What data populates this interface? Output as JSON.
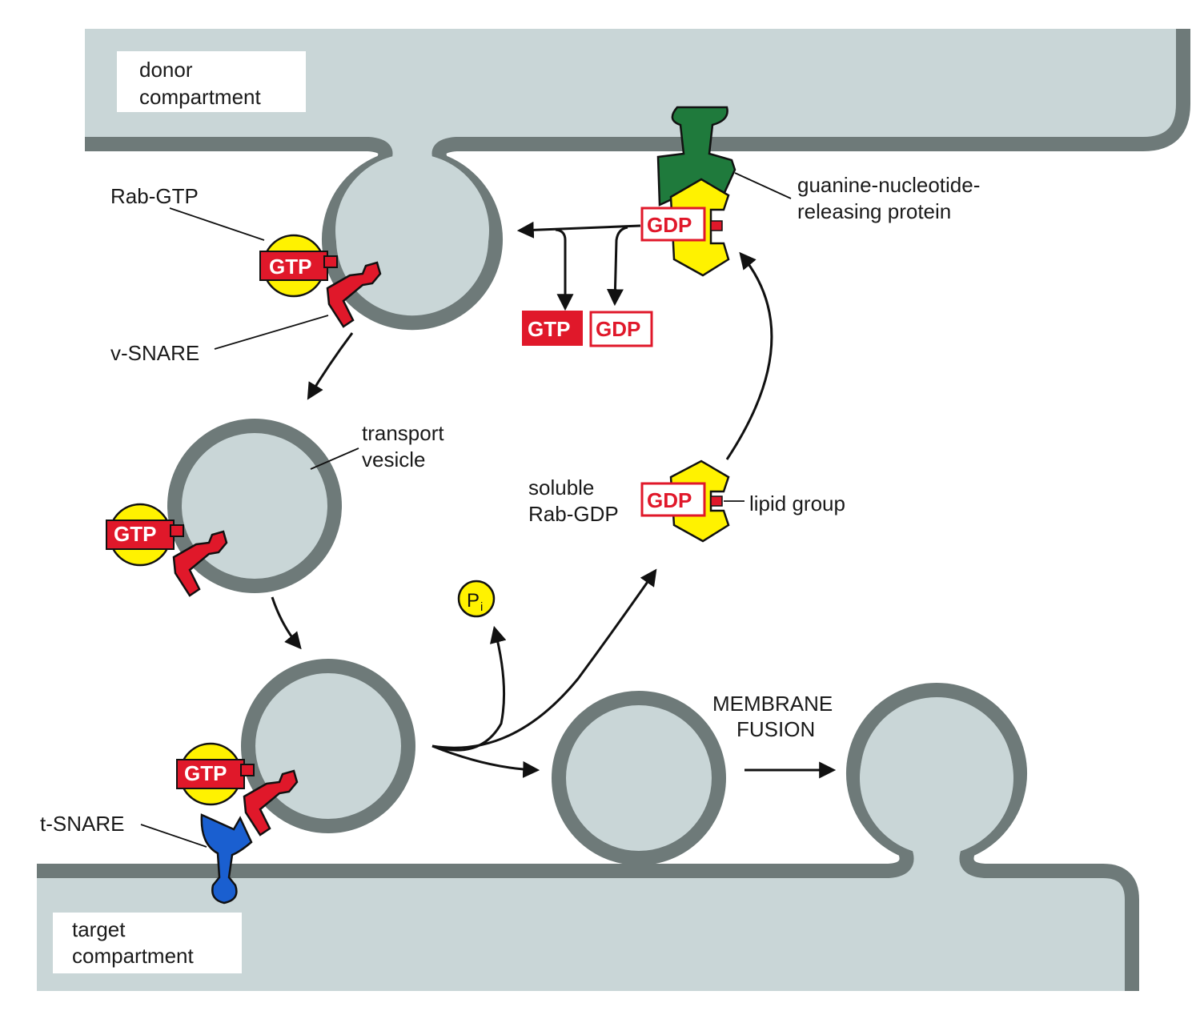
{
  "labels": {
    "donor_line1": "donor",
    "donor_line2": "compartment",
    "target_line1": "target",
    "target_line2": "compartment",
    "rab_gtp": "Rab-GTP",
    "v_snare": "v-SNARE",
    "t_snare": "t-SNARE",
    "transport_line1": "transport",
    "transport_line2": "vesicle",
    "gnrp_line1": "guanine-nucleotide-",
    "gnrp_line2": "releasing protein",
    "soluble_line1": "soluble",
    "soluble_line2": "Rab-GDP",
    "lipid_group": "lipid group",
    "fusion_line1": "MEMBRANE",
    "fusion_line2": "FUSION",
    "pi_main": "P",
    "pi_sub": "i"
  },
  "boxes": {
    "gtp": "GTP",
    "gdp": "GDP"
  },
  "colors": {
    "compartment": "#c9d6d7",
    "membrane": "#6e7a79",
    "rab": "#fff200",
    "gtp_red": "#e0182a",
    "gef_green": "#1f7a3c",
    "t_snare_blue": "#1a5fd0"
  }
}
